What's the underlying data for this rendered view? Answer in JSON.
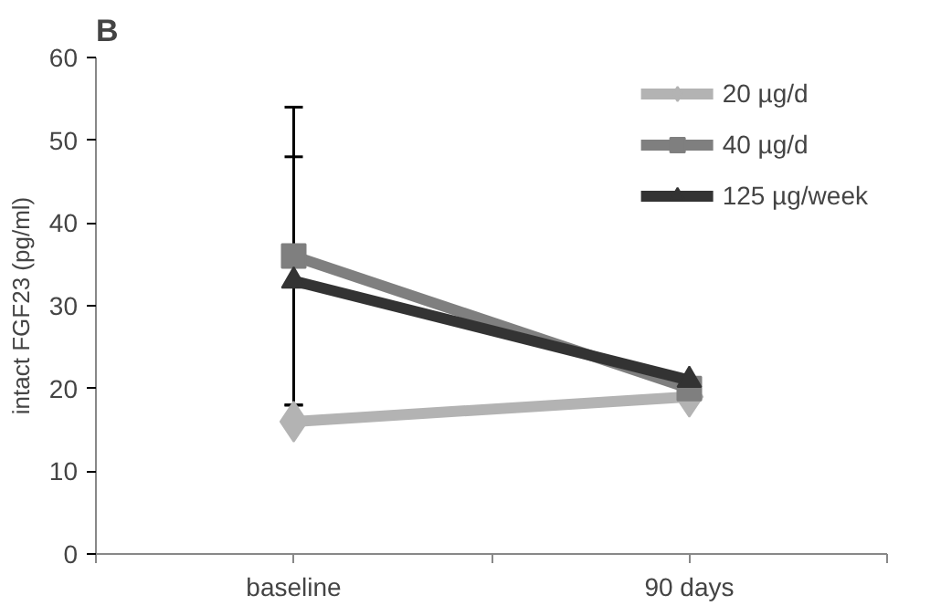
{
  "chart_data": {
    "type": "line",
    "title": "B",
    "ylabel": "intact FGF23 (pg/ml)",
    "categories": [
      "baseline",
      "90 days"
    ],
    "ylim": [
      0,
      60
    ],
    "yticks": [
      0,
      10,
      20,
      30,
      40,
      50,
      60
    ],
    "grid": false,
    "legend": "top right",
    "series": [
      {
        "name": "20 µg/d",
        "color": "#b3b3b3",
        "values": [
          16,
          19
        ],
        "marker": "diamond"
      },
      {
        "name": "40 µg/d",
        "color": "#7f7f7f",
        "values": [
          36,
          20
        ],
        "marker": "square",
        "errors": [
          [
            18,
            54
          ],
          null
        ]
      },
      {
        "name": "125 µg/week",
        "color": "#333333",
        "values": [
          33,
          21
        ],
        "marker": "triangle",
        "errors": [
          [
            18,
            48
          ],
          null
        ]
      }
    ]
  }
}
